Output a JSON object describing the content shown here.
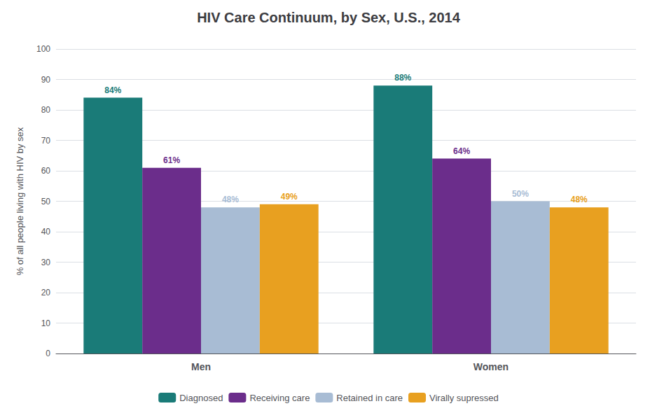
{
  "chart_data": {
    "type": "bar",
    "title": "HIV Care Continuum, by Sex, U.S., 2014",
    "ylabel": "% of all people living with HIV by sex",
    "categories": [
      "Men",
      "Women"
    ],
    "series": [
      {
        "name": "Diagnosed",
        "color": "#1a7b78",
        "values": [
          84,
          88
        ],
        "value_labels": [
          "84%",
          "88%"
        ]
      },
      {
        "name": "Receiving care",
        "color": "#6b2d8b",
        "values": [
          61,
          64
        ],
        "value_labels": [
          "61%",
          "64%"
        ]
      },
      {
        "name": "Retained in care",
        "color": "#a8bcd4",
        "values": [
          48,
          50
        ],
        "value_labels": [
          "48%",
          "50%"
        ]
      },
      {
        "name": "Virally supressed",
        "color": "#e8a020",
        "values": [
          49,
          48
        ],
        "value_labels": [
          "49%",
          "48%"
        ]
      }
    ],
    "ylim": [
      0,
      100
    ],
    "yticks": [
      0,
      10,
      20,
      30,
      40,
      50,
      60,
      70,
      80,
      90,
      100
    ],
    "grid": true,
    "legend": "bottom",
    "data_labels": true
  }
}
